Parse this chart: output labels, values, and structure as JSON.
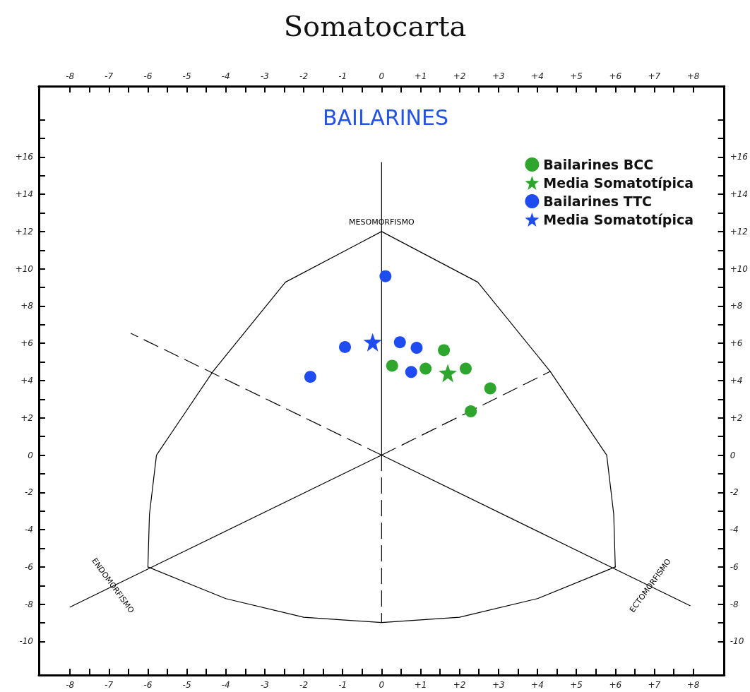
{
  "chart_data": {
    "type": "scatter",
    "title": "Somatocarta",
    "subtitle": "BAILARINES",
    "xlim": [
      -8.8,
      8.8
    ],
    "ylim": [
      -11.8,
      19.8
    ],
    "x2lim": [
      -8.8,
      8.8
    ],
    "y2lim": [
      -11.8,
      19.8
    ],
    "xticks": [
      {
        "value": -8,
        "label": "-8"
      },
      {
        "value": -7.5,
        "label": null
      },
      {
        "value": -7,
        "label": "-7"
      },
      {
        "value": -6.5,
        "label": null
      },
      {
        "value": -6,
        "label": "-6"
      },
      {
        "value": -5.5,
        "label": null
      },
      {
        "value": -5,
        "label": "-5"
      },
      {
        "value": -4.5,
        "label": null
      },
      {
        "value": -4,
        "label": "-4"
      },
      {
        "value": -3.5,
        "label": null
      },
      {
        "value": -3,
        "label": "-3"
      },
      {
        "value": -2.5,
        "label": null
      },
      {
        "value": -2,
        "label": "-2"
      },
      {
        "value": -1.5,
        "label": null
      },
      {
        "value": -1,
        "label": "-1"
      },
      {
        "value": -0.5,
        "label": null
      },
      {
        "value": 0,
        "label": "0"
      },
      {
        "value": 0.5,
        "label": null
      },
      {
        "value": 1,
        "label": "+1"
      },
      {
        "value": 1.5,
        "label": null
      },
      {
        "value": 2,
        "label": "+2"
      },
      {
        "value": 2.5,
        "label": null
      },
      {
        "value": 3,
        "label": "+3"
      },
      {
        "value": 3.5,
        "label": null
      },
      {
        "value": 4,
        "label": "+4"
      },
      {
        "value": 4.5,
        "label": null
      },
      {
        "value": 5,
        "label": "+5"
      },
      {
        "value": 5.5,
        "label": null
      },
      {
        "value": 6,
        "label": "+6"
      },
      {
        "value": 6.5,
        "label": null
      },
      {
        "value": 7,
        "label": "+7"
      },
      {
        "value": 7.5,
        "label": null
      },
      {
        "value": 8,
        "label": "+8"
      }
    ],
    "x2ticks": [
      {
        "value": -8,
        "label": "-8"
      },
      {
        "value": -7.5,
        "label": null
      },
      {
        "value": -7,
        "label": "-7"
      },
      {
        "value": -6.5,
        "label": null
      },
      {
        "value": -6,
        "label": "-6"
      },
      {
        "value": -5.5,
        "label": null
      },
      {
        "value": -5,
        "label": "-5"
      },
      {
        "value": -4.5,
        "label": null
      },
      {
        "value": -4,
        "label": "-4"
      },
      {
        "value": -3.5,
        "label": null
      },
      {
        "value": -3,
        "label": "-3"
      },
      {
        "value": -2.5,
        "label": null
      },
      {
        "value": -2,
        "label": "-2"
      },
      {
        "value": -1.5,
        "label": null
      },
      {
        "value": -1,
        "label": "-1"
      },
      {
        "value": -0.5,
        "label": null
      },
      {
        "value": 0,
        "label": "0"
      },
      {
        "value": 0.5,
        "label": null
      },
      {
        "value": 1,
        "label": "+1"
      },
      {
        "value": 1.5,
        "label": null
      },
      {
        "value": 2,
        "label": "+2"
      },
      {
        "value": 2.5,
        "label": null
      },
      {
        "value": 3,
        "label": "+3"
      },
      {
        "value": 3.5,
        "label": null
      },
      {
        "value": 4,
        "label": "+4"
      },
      {
        "value": 4.5,
        "label": null
      },
      {
        "value": 5,
        "label": "+5"
      },
      {
        "value": 5.5,
        "label": null
      },
      {
        "value": 6,
        "label": "+6"
      },
      {
        "value": 6.5,
        "label": null
      },
      {
        "value": 7,
        "label": "+7"
      },
      {
        "value": 7.5,
        "label": null
      },
      {
        "value": 8,
        "label": "+8"
      }
    ],
    "yticks": [
      {
        "value": -10,
        "label": "-10"
      },
      {
        "value": -9,
        "label": null
      },
      {
        "value": -8,
        "label": "-8"
      },
      {
        "value": -7,
        "label": null
      },
      {
        "value": -6,
        "label": "-6"
      },
      {
        "value": -5,
        "label": null
      },
      {
        "value": -4,
        "label": "-4"
      },
      {
        "value": -3,
        "label": null
      },
      {
        "value": -2,
        "label": "-2"
      },
      {
        "value": -1,
        "label": null
      },
      {
        "value": 0,
        "label": "0"
      },
      {
        "value": 1,
        "label": null
      },
      {
        "value": 2,
        "label": "+2"
      },
      {
        "value": 3,
        "label": null
      },
      {
        "value": 4,
        "label": "+4"
      },
      {
        "value": 5,
        "label": null
      },
      {
        "value": 6,
        "label": "+6"
      },
      {
        "value": 7,
        "label": null
      },
      {
        "value": 8,
        "label": "+8"
      },
      {
        "value": 9,
        "label": null
      },
      {
        "value": 10,
        "label": "+10"
      },
      {
        "value": 11,
        "label": null
      },
      {
        "value": 12,
        "label": "+12"
      },
      {
        "value": 13,
        "label": null
      },
      {
        "value": 14,
        "label": "+14"
      },
      {
        "value": 15,
        "label": null
      },
      {
        "value": 16,
        "label": "+16"
      },
      {
        "value": 17,
        "label": null
      },
      {
        "value": 18,
        "label": null
      }
    ],
    "y2ticks": [
      {
        "value": -10,
        "label": "-10"
      },
      {
        "value": -9,
        "label": null
      },
      {
        "value": -8,
        "label": "-8"
      },
      {
        "value": -7,
        "label": null
      },
      {
        "value": -6,
        "label": "-6"
      },
      {
        "value": -5,
        "label": null
      },
      {
        "value": -4,
        "label": "-4"
      },
      {
        "value": -3,
        "label": null
      },
      {
        "value": -2,
        "label": "-2"
      },
      {
        "value": -1,
        "label": null
      },
      {
        "value": 0,
        "label": "0"
      },
      {
        "value": 1,
        "label": null
      },
      {
        "value": 2,
        "label": "+2"
      },
      {
        "value": 3,
        "label": null
      },
      {
        "value": 4,
        "label": "+4"
      },
      {
        "value": 5,
        "label": null
      },
      {
        "value": 6,
        "label": "+6"
      },
      {
        "value": 7,
        "label": null
      },
      {
        "value": 8,
        "label": "+8"
      },
      {
        "value": 9,
        "label": null
      },
      {
        "value": 10,
        "label": "+10"
      },
      {
        "value": 11,
        "label": null
      },
      {
        "value": 12,
        "label": "+12"
      },
      {
        "value": 13,
        "label": null
      },
      {
        "value": 14,
        "label": "+14"
      },
      {
        "value": 15,
        "label": null
      },
      {
        "value": 16,
        "label": "+16"
      },
      {
        "value": 17,
        "label": null
      },
      {
        "value": 18,
        "label": null
      }
    ],
    "grid": false,
    "legend": "top right",
    "series": [
      {
        "type": "line",
        "color": "#000000",
        "line_style": "solid",
        "x": [
          0,
          0
        ],
        "values": [
          0,
          15.7
        ]
      },
      {
        "type": "line",
        "color": "#000000",
        "line_style": "dashed",
        "x": [
          0,
          0
        ],
        "values": [
          0,
          -8.98
        ]
      },
      {
        "type": "line",
        "color": "#000000",
        "line_style": "dashed",
        "x": [
          0,
          -6.43
        ],
        "values": [
          0,
          6.53
        ]
      },
      {
        "type": "line",
        "color": "#000000",
        "line_style": "dashed",
        "x": [
          0,
          4.33
        ],
        "values": [
          0,
          4.49
        ]
      },
      {
        "type": "line",
        "color": "#000000",
        "line_style": "solid",
        "x": [
          0,
          -8
        ],
        "values": [
          0,
          -8.15
        ]
      },
      {
        "type": "line",
        "color": "#000000",
        "line_style": "solid",
        "x": [
          0,
          7.92
        ],
        "values": [
          0,
          -8.08
        ]
      },
      {
        "type": "line",
        "color": "#000000",
        "line_style": "solid",
        "x": [
          0,
          2.47,
          4.33,
          5.78,
          5.96,
          6
        ],
        "values": [
          12,
          9.28,
          4.49,
          0,
          -3.17,
          -6
        ]
      },
      {
        "type": "line",
        "color": "#000000",
        "line_style": "solid",
        "x": [
          0,
          -2.47,
          -4.33,
          -5.78,
          -5.96,
          -6
        ],
        "values": [
          12,
          9.28,
          4.49,
          0,
          -3.17,
          -6
        ]
      },
      {
        "type": "line",
        "color": "#000000",
        "line_style": "solid",
        "x": [
          -6,
          -4,
          -2,
          0,
          2,
          4,
          6
        ],
        "values": [
          -6,
          -7.7,
          -8.7,
          -8.98,
          -8.7,
          -7.7,
          -6
        ]
      },
      {
        "name": "Bailarines BCC",
        "color": "#2ea62e",
        "marker": "circle",
        "x": [
          1.6,
          0.27,
          1.13,
          2.16,
          2.79,
          2.29
        ],
        "values": [
          5.63,
          4.8,
          4.64,
          4.64,
          3.58,
          2.35
        ]
      },
      {
        "name": "Media Somatotípica",
        "color": "#2ea62e",
        "marker": "star",
        "x": [
          1.7
        ],
        "values": [
          4.4
        ]
      },
      {
        "name": "Bailarines TTC",
        "color": "#1f4cf0",
        "marker": "circle",
        "x": [
          0.1,
          -0.94,
          -1.83,
          0.47,
          0.9,
          0.76
        ],
        "values": [
          9.6,
          5.8,
          4.2,
          6.06,
          5.76,
          4.46
        ]
      },
      {
        "name": "Media Somatotípica",
        "color": "#1f4cf0",
        "marker": "star",
        "x": [
          -0.23
        ],
        "values": [
          6.06
        ]
      }
    ],
    "annotations": [
      {
        "text": "MESOMORFISMO",
        "x": 0,
        "y": 12.5
      },
      {
        "text": "ENDOMORFISMO",
        "x": -6.9,
        "y": -7
      },
      {
        "text": "ECTOMORFISMO",
        "x": 6.9,
        "y": -7
      }
    ]
  }
}
